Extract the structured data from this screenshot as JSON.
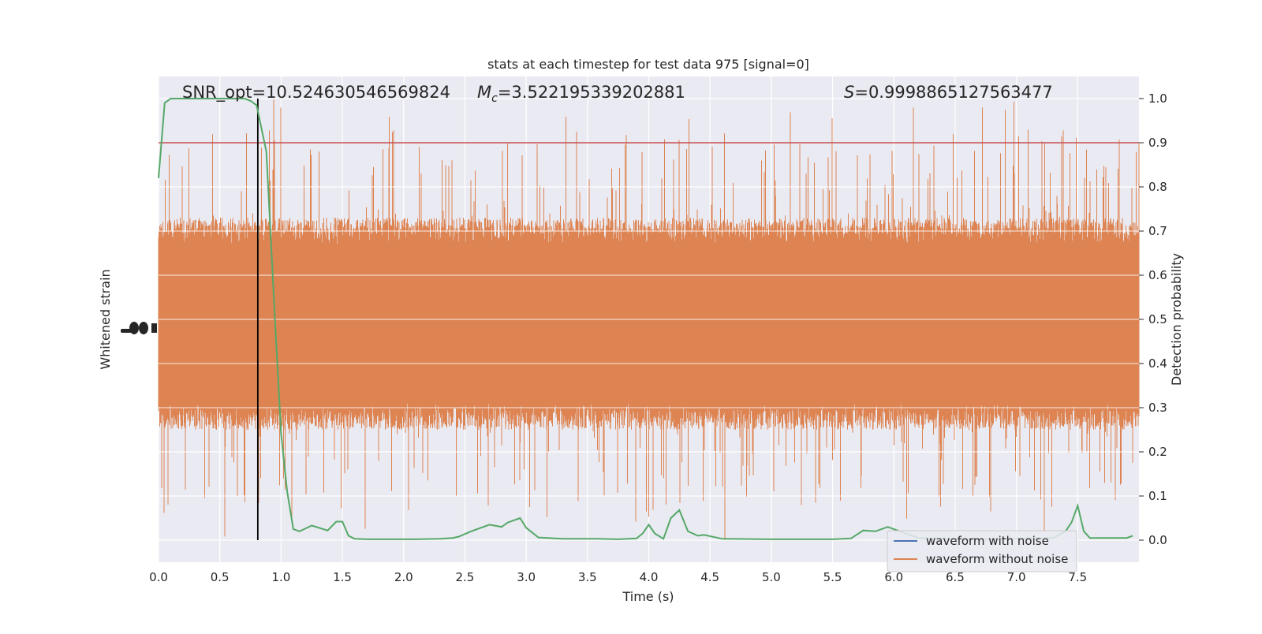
{
  "chart_data": {
    "type": "line",
    "title": "stats at each timestep for test data 975 [signal=0]",
    "xlabel": "Time (s)",
    "ylabel_left": "Whitened strain",
    "ylabel_right": "Detection probability",
    "xlim": [
      0.0,
      8.0
    ],
    "ylim_right": [
      -0.05,
      1.05
    ],
    "xticks": [
      "0.0",
      "0.5",
      "1.0",
      "1.5",
      "2.0",
      "2.5",
      "3.0",
      "3.5",
      "4.0",
      "4.5",
      "5.0",
      "5.5",
      "6.0",
      "6.5",
      "7.0",
      "7.5"
    ],
    "yticks_right": [
      "0.0",
      "0.1",
      "0.2",
      "0.3",
      "0.4",
      "0.5",
      "0.6",
      "0.7",
      "0.8",
      "0.9",
      "1.0"
    ],
    "grid": true,
    "legend_position": "bottom-right",
    "annotations": {
      "snr_text": "SNR_opt=10.524630546569824",
      "mc_symbol": "M",
      "mc_sub": "c",
      "mc_value": "=3.522195339202881",
      "s_symbol": "S",
      "s_value": "=0.9998865127563477"
    },
    "threshold": 0.9,
    "marker_line_x": 0.81,
    "series": [
      {
        "name": "waveform with noise",
        "color": "#4c72b0",
        "values": []
      },
      {
        "name": "waveform without noise",
        "color": "#dd8452",
        "envelope": {
          "lo_core": 0.28,
          "hi_core": 0.7,
          "lo_min": 0.0,
          "hi_max": 1.0
        }
      },
      {
        "name": "",
        "color": "#55a868",
        "x": [
          0.0,
          0.05,
          0.1,
          0.2,
          0.3,
          0.4,
          0.5,
          0.6,
          0.7,
          0.75,
          0.8,
          0.88,
          0.95,
          1.0,
          1.05,
          1.1,
          1.15,
          1.25,
          1.38,
          1.45,
          1.5,
          1.55,
          1.6,
          1.7,
          1.9,
          2.1,
          2.3,
          2.4,
          2.45,
          2.55,
          2.7,
          2.8,
          2.85,
          2.95,
          3.0,
          3.1,
          3.3,
          3.6,
          3.75,
          3.9,
          3.95,
          4.0,
          4.05,
          4.12,
          4.18,
          4.25,
          4.32,
          4.4,
          4.45,
          4.6,
          5.0,
          5.5,
          5.65,
          5.75,
          5.85,
          5.95,
          6.05,
          6.2,
          6.6,
          6.95,
          7.3,
          7.4,
          7.45,
          7.5,
          7.55,
          7.6,
          7.9,
          7.95
        ],
        "y": [
          0.82,
          0.99,
          1.0,
          1.0,
          1.0,
          1.0,
          1.0,
          1.0,
          1.0,
          0.995,
          0.985,
          0.88,
          0.5,
          0.24,
          0.11,
          0.025,
          0.02,
          0.033,
          0.022,
          0.042,
          0.042,
          0.01,
          0.003,
          0.002,
          0.002,
          0.002,
          0.003,
          0.005,
          0.008,
          0.02,
          0.035,
          0.03,
          0.04,
          0.05,
          0.028,
          0.006,
          0.003,
          0.003,
          0.002,
          0.004,
          0.015,
          0.035,
          0.015,
          0.003,
          0.05,
          0.068,
          0.02,
          0.01,
          0.012,
          0.003,
          0.002,
          0.002,
          0.004,
          0.022,
          0.02,
          0.03,
          0.02,
          0.005,
          0.002,
          0.003,
          0.005,
          0.02,
          0.04,
          0.078,
          0.02,
          0.005,
          0.005,
          0.01
        ]
      }
    ]
  }
}
